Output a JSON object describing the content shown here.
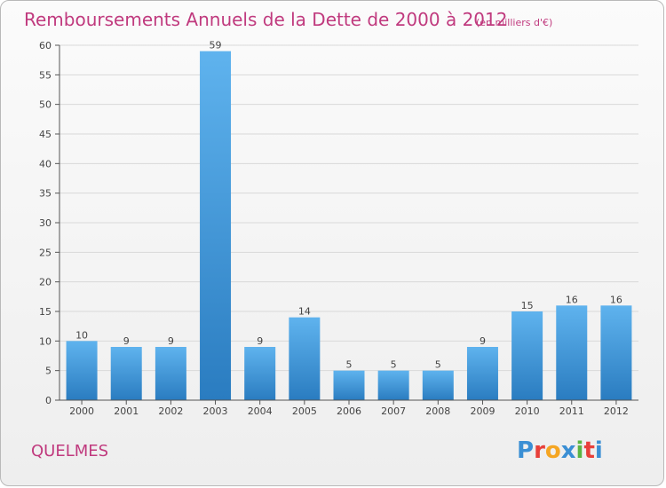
{
  "header": {
    "title": "Remboursements Annuels de la Dette de 2000 à 2012",
    "unit": "(en milliers d'€)"
  },
  "footer": {
    "town": "QUELMES",
    "logo_letters": [
      "P",
      "r",
      "o",
      "x",
      "i",
      "t",
      "i"
    ],
    "logo_colors": [
      "#3b8fd4",
      "#e8403a",
      "#f5a623",
      "#3b8fd4",
      "#5bb543",
      "#e8403a",
      "#3b8fd4"
    ]
  },
  "colors": {
    "bar_top": "#5fb3ee",
    "bar_bottom": "#2a7cc0",
    "grid": "#d9d9d9",
    "axis": "#555555"
  },
  "chart_data": {
    "type": "bar",
    "title": "Remboursements Annuels de la Dette de 2000 à 2012",
    "subtitle": "(en milliers d'€)",
    "xlabel": "",
    "ylabel": "",
    "categories": [
      "2000",
      "2001",
      "2002",
      "2003",
      "2004",
      "2005",
      "2006",
      "2007",
      "2008",
      "2009",
      "2010",
      "2011",
      "2012"
    ],
    "values": [
      10,
      9,
      9,
      59,
      9,
      14,
      5,
      5,
      5,
      9,
      15,
      16,
      16
    ],
    "ylim": [
      0,
      60
    ],
    "yticks": [
      0,
      5,
      10,
      15,
      20,
      25,
      30,
      35,
      40,
      45,
      50,
      55,
      60
    ],
    "grid": true,
    "legend": "none"
  }
}
